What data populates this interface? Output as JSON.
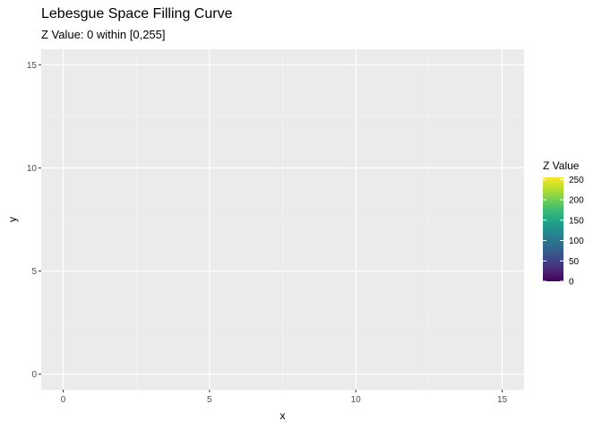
{
  "chart_data": {
    "type": "heatmap",
    "title": "Lebesgue Space Filling Curve",
    "subtitle": "Z Value: 0 within [0,255]",
    "xlabel": "x",
    "ylabel": "y",
    "xlim": [
      -0.75,
      15.75
    ],
    "ylim": [
      -0.75,
      15.75
    ],
    "x_ticks": [
      0,
      5,
      10,
      15
    ],
    "y_ticks": [
      0,
      5,
      10,
      15
    ],
    "x_minor": [
      2.5,
      7.5,
      12.5
    ],
    "y_minor": [
      2.5,
      7.5,
      12.5
    ],
    "grid": true,
    "points": [],
    "legend": {
      "title": "Z Value",
      "position": "right",
      "range": [
        0,
        255
      ],
      "ticks": [
        0,
        50,
        100,
        150,
        200,
        250
      ],
      "colors": [
        "#440154",
        "#482878",
        "#3E4A89",
        "#31688E",
        "#26828E",
        "#1F9E89",
        "#35B779",
        "#6DCD59",
        "#B4DE2C",
        "#FDE725"
      ]
    }
  },
  "colors": {
    "panel_background": "#EBEBEB",
    "grid_major": "#FFFFFF",
    "grid_minor": "#F5F5F5"
  }
}
